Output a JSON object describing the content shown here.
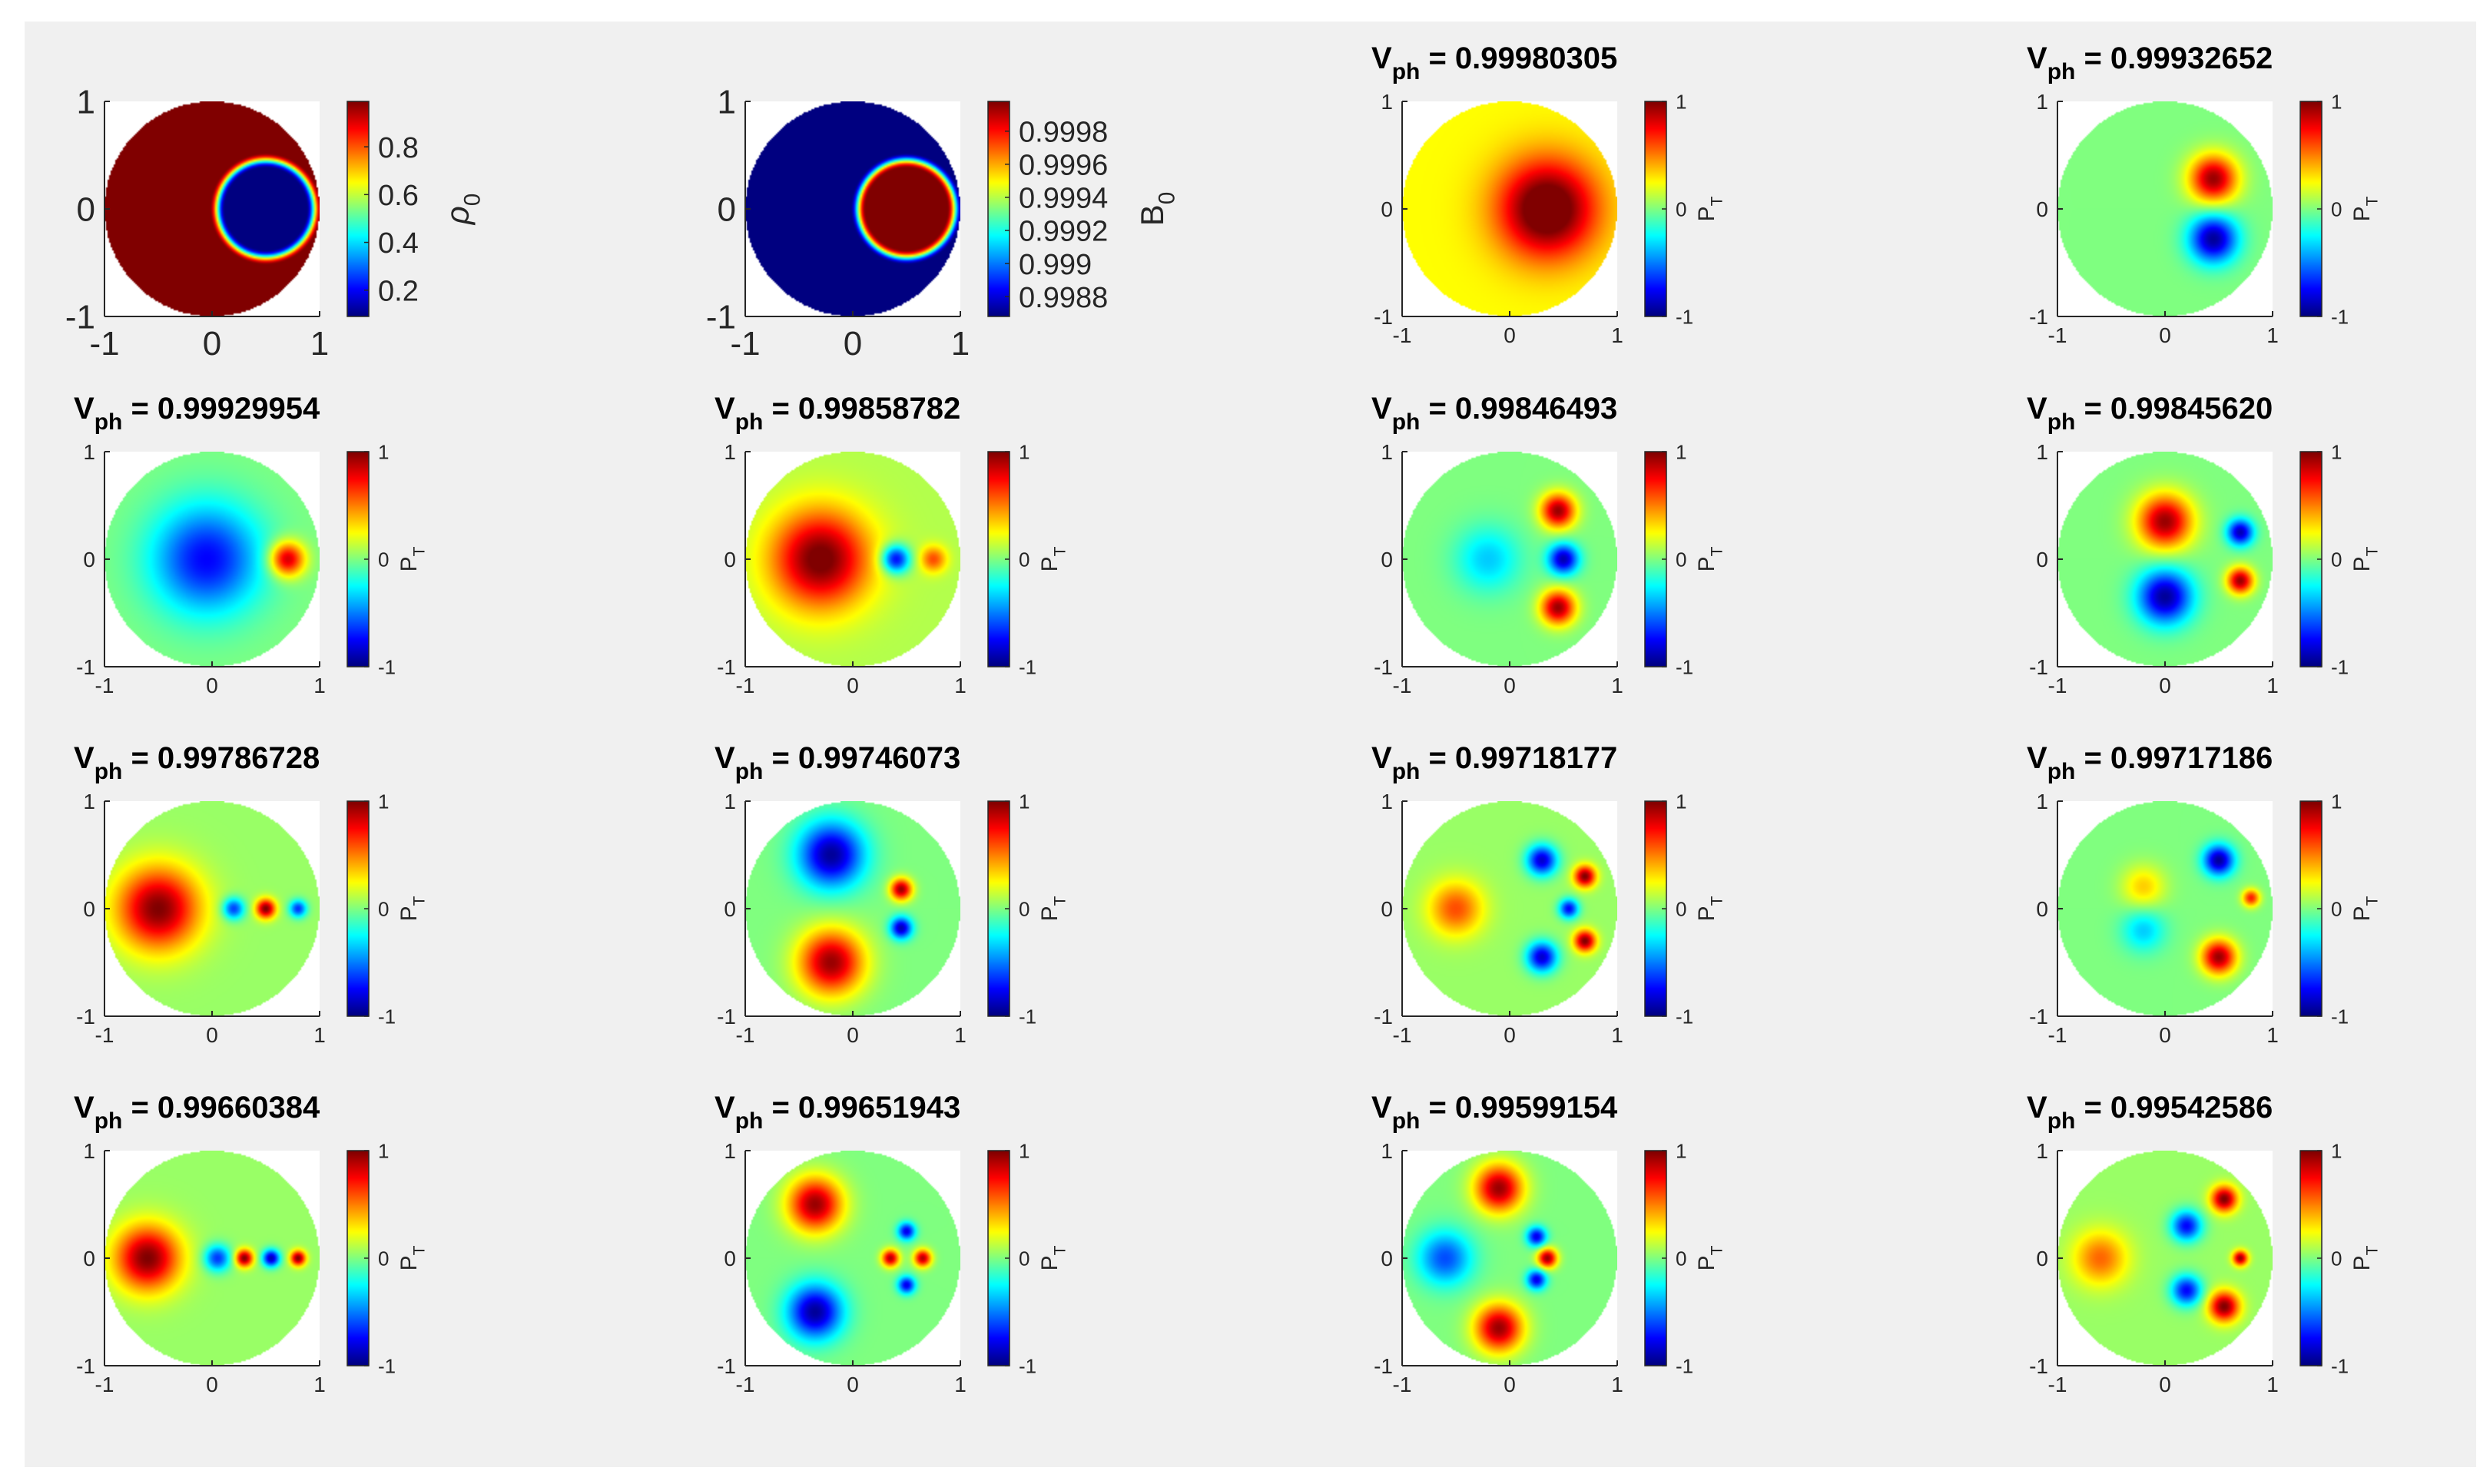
{
  "figure": {
    "background": "#f0f0f0",
    "colormap": "jet",
    "grid": "4x4"
  },
  "chart_data": [
    {
      "type": "heatmap",
      "title": "",
      "colorbar_label": "ρ",
      "colorbar_label_subscript": "0",
      "colorbar_ticks": [
        "0.8",
        "0.6",
        "0.4",
        "0.2"
      ],
      "colorbar_tick_values": [
        0.8,
        0.6,
        0.4,
        0.2
      ],
      "clim": [
        0.09,
        0.99
      ],
      "xlim": [
        -1,
        1
      ],
      "ylim": [
        -1,
        1
      ],
      "xticks": [
        "-1",
        "0",
        "1"
      ],
      "yticks": [
        "1",
        "0",
        "-1"
      ],
      "field": {
        "kind": "density",
        "hole_center": [
          0.5,
          0
        ],
        "hole_radius": 0.45,
        "outside": 0.99,
        "inside": 0.09
      }
    },
    {
      "type": "heatmap",
      "title": "",
      "colorbar_label": "B",
      "colorbar_label_subscript": "0",
      "colorbar_ticks": [
        "0.9998",
        "0.9996",
        "0.9994",
        "0.9992",
        "0.999",
        "0.9988"
      ],
      "colorbar_tick_values": [
        0.9998,
        0.9996,
        0.9994,
        0.9992,
        0.999,
        0.9988
      ],
      "clim": [
        0.99868,
        0.99998
      ],
      "xlim": [
        -1,
        1
      ],
      "ylim": [
        -1,
        1
      ],
      "xticks": [
        "-1",
        "0",
        "1"
      ],
      "yticks": [
        "1",
        "0",
        "-1"
      ],
      "field": {
        "kind": "field_strength",
        "hole_center": [
          0.5,
          0
        ],
        "hole_radius": 0.45,
        "outside": 0.99868,
        "inside": 0.99998
      }
    },
    {
      "type": "heatmap",
      "title_prefix": "V",
      "title_sub": "ph",
      "title_value": " = 0.99980305",
      "colorbar_label": "P",
      "colorbar_label_subscript": "T",
      "colorbar_ticks": [
        "1",
        "0",
        "-1"
      ],
      "clim": [
        -1,
        1
      ],
      "xlim": [
        -1,
        1
      ],
      "ylim": [
        -1,
        1
      ],
      "xticks": [
        "-1",
        "0",
        "1"
      ],
      "yticks": [
        "1",
        "0",
        "-1"
      ],
      "field": {
        "kind": "mode",
        "base": 0.25,
        "blobs": [
          [
            0.35,
            0.0,
            0.95,
            0.45
          ]
        ]
      }
    },
    {
      "type": "heatmap",
      "title_prefix": "V",
      "title_sub": "ph",
      "title_value": " = 0.99932652",
      "colorbar_label": "P",
      "colorbar_label_subscript": "T",
      "colorbar_ticks": [
        "1",
        "0",
        "-1"
      ],
      "clim": [
        -1,
        1
      ],
      "xlim": [
        -1,
        1
      ],
      "ylim": [
        -1,
        1
      ],
      "xticks": [
        "-1",
        "0",
        "1"
      ],
      "yticks": [
        "1",
        "0",
        "-1"
      ],
      "field": {
        "kind": "mode",
        "base": 0.0,
        "blobs": [
          [
            0.45,
            0.28,
            0.95,
            0.22
          ],
          [
            0.45,
            -0.28,
            -0.95,
            0.22
          ]
        ]
      }
    },
    {
      "type": "heatmap",
      "title_prefix": "V",
      "title_sub": "ph",
      "title_value": " = 0.99929954",
      "colorbar_label": "P",
      "colorbar_label_subscript": "T",
      "colorbar_ticks": [
        "1",
        "0",
        "-1"
      ],
      "clim": [
        -1,
        1
      ],
      "xlim": [
        -1,
        1
      ],
      "ylim": [
        -1,
        1
      ],
      "xticks": [
        "-1",
        "0",
        "1"
      ],
      "yticks": [
        "1",
        "0",
        "-1"
      ],
      "field": {
        "kind": "mode",
        "base": 0.0,
        "blobs": [
          [
            -0.05,
            0.0,
            -0.75,
            0.5
          ],
          [
            0.7,
            0.0,
            0.9,
            0.16
          ]
        ]
      }
    },
    {
      "type": "heatmap",
      "title_prefix": "V",
      "title_sub": "ph",
      "title_value": " = 0.99858782",
      "colorbar_label": "P",
      "colorbar_label_subscript": "T",
      "colorbar_ticks": [
        "1",
        "0",
        "-1"
      ],
      "clim": [
        -1,
        1
      ],
      "xlim": [
        -1,
        1
      ],
      "ylim": [
        -1,
        1
      ],
      "xticks": [
        "-1",
        "0",
        "1"
      ],
      "yticks": [
        "1",
        "0",
        "-1"
      ],
      "field": {
        "kind": "mode",
        "base": 0.1,
        "blobs": [
          [
            -0.3,
            0.0,
            0.95,
            0.45
          ],
          [
            0.4,
            0.0,
            -0.9,
            0.13
          ],
          [
            0.75,
            0.0,
            0.5,
            0.12
          ]
        ]
      }
    },
    {
      "type": "heatmap",
      "title_prefix": "V",
      "title_sub": "ph",
      "title_value": " = 0.99846493",
      "colorbar_label": "P",
      "colorbar_label_subscript": "T",
      "colorbar_ticks": [
        "1",
        "0",
        "-1"
      ],
      "clim": [
        -1,
        1
      ],
      "xlim": [
        -1,
        1
      ],
      "ylim": [
        -1,
        1
      ],
      "xticks": [
        "-1",
        "0",
        "1"
      ],
      "yticks": [
        "1",
        "0",
        "-1"
      ],
      "field": {
        "kind": "mode",
        "base": 0.0,
        "blobs": [
          [
            0.45,
            0.45,
            0.95,
            0.16
          ],
          [
            0.45,
            -0.45,
            0.95,
            0.16
          ],
          [
            0.5,
            0.0,
            -0.9,
            0.14
          ],
          [
            -0.2,
            0.0,
            -0.35,
            0.3
          ]
        ]
      }
    },
    {
      "type": "heatmap",
      "title_prefix": "V",
      "title_sub": "ph",
      "title_value": " = 0.99845620",
      "colorbar_label": "P",
      "colorbar_label_subscript": "T",
      "colorbar_ticks": [
        "1",
        "0",
        "-1"
      ],
      "clim": [
        -1,
        1
      ],
      "xlim": [
        -1,
        1
      ],
      "ylim": [
        -1,
        1
      ],
      "xticks": [
        "-1",
        "0",
        "1"
      ],
      "yticks": [
        "1",
        "0",
        "-1"
      ],
      "field": {
        "kind": "mode",
        "base": 0.0,
        "blobs": [
          [
            0.0,
            0.35,
            0.95,
            0.25
          ],
          [
            0.0,
            -0.35,
            -0.95,
            0.25
          ],
          [
            0.7,
            0.25,
            -0.9,
            0.12
          ],
          [
            0.7,
            -0.2,
            0.95,
            0.12
          ]
        ]
      }
    },
    {
      "type": "heatmap",
      "title_prefix": "V",
      "title_sub": "ph",
      "title_value": " = 0.99786728",
      "colorbar_label": "P",
      "colorbar_label_subscript": "T",
      "colorbar_ticks": [
        "1",
        "0",
        "-1"
      ],
      "clim": [
        -1,
        1
      ],
      "xlim": [
        -1,
        1
      ],
      "ylim": [
        -1,
        1
      ],
      "xticks": [
        "-1",
        "0",
        "1"
      ],
      "yticks": [
        "1",
        "0",
        "-1"
      ],
      "field": {
        "kind": "mode",
        "base": 0.05,
        "blobs": [
          [
            -0.5,
            0.0,
            0.95,
            0.38
          ],
          [
            0.2,
            0.0,
            -0.7,
            0.1
          ],
          [
            0.5,
            0.0,
            0.95,
            0.09
          ],
          [
            0.8,
            0.0,
            -0.7,
            0.08
          ]
        ]
      }
    },
    {
      "type": "heatmap",
      "title_prefix": "V",
      "title_sub": "ph",
      "title_value": " = 0.99746073",
      "colorbar_label": "P",
      "colorbar_label_subscript": "T",
      "colorbar_ticks": [
        "1",
        "0",
        "-1"
      ],
      "clim": [
        -1,
        1
      ],
      "xlim": [
        -1,
        1
      ],
      "ylim": [
        -1,
        1
      ],
      "xticks": [
        "-1",
        "0",
        "1"
      ],
      "yticks": [
        "1",
        "0",
        "-1"
      ],
      "field": {
        "kind": "mode",
        "base": 0.0,
        "blobs": [
          [
            -0.2,
            0.5,
            -0.95,
            0.3
          ],
          [
            -0.2,
            -0.5,
            0.95,
            0.3
          ],
          [
            0.45,
            0.18,
            0.95,
            0.1
          ],
          [
            0.45,
            -0.18,
            -0.9,
            0.1
          ]
        ]
      }
    },
    {
      "type": "heatmap",
      "title_prefix": "V",
      "title_sub": "ph",
      "title_value": " = 0.99718177",
      "colorbar_label": "P",
      "colorbar_label_subscript": "T",
      "colorbar_ticks": [
        "1",
        "0",
        "-1"
      ],
      "clim": [
        -1,
        1
      ],
      "xlim": [
        -1,
        1
      ],
      "ylim": [
        -1,
        1
      ],
      "xticks": [
        "-1",
        "0",
        "1"
      ],
      "yticks": [
        "1",
        "0",
        "-1"
      ],
      "field": {
        "kind": "mode",
        "base": 0.05,
        "blobs": [
          [
            -0.5,
            0.0,
            0.55,
            0.25
          ],
          [
            0.3,
            0.45,
            -0.9,
            0.14
          ],
          [
            0.3,
            -0.45,
            -0.9,
            0.14
          ],
          [
            0.7,
            0.3,
            0.95,
            0.1
          ],
          [
            0.7,
            -0.3,
            0.95,
            0.1
          ],
          [
            0.55,
            0.0,
            -0.8,
            0.09
          ]
        ]
      }
    },
    {
      "type": "heatmap",
      "title_prefix": "V",
      "title_sub": "ph",
      "title_value": " = 0.99717186",
      "colorbar_label": "P",
      "colorbar_label_subscript": "T",
      "colorbar_ticks": [
        "1",
        "0",
        "-1"
      ],
      "clim": [
        -1,
        1
      ],
      "xlim": [
        -1,
        1
      ],
      "ylim": [
        -1,
        1
      ],
      "xticks": [
        "-1",
        "0",
        "1"
      ],
      "yticks": [
        "1",
        "0",
        "-1"
      ],
      "field": {
        "kind": "mode",
        "base": 0.0,
        "blobs": [
          [
            0.5,
            0.45,
            -0.95,
            0.14
          ],
          [
            0.5,
            -0.45,
            0.95,
            0.16
          ],
          [
            -0.2,
            0.2,
            0.35,
            0.2
          ],
          [
            -0.2,
            -0.2,
            -0.35,
            0.2
          ],
          [
            0.8,
            0.1,
            0.7,
            0.08
          ]
        ]
      }
    },
    {
      "type": "heatmap",
      "title_prefix": "V",
      "title_sub": "ph",
      "title_value": " = 0.99660384",
      "colorbar_label": "P",
      "colorbar_label_subscript": "T",
      "colorbar_ticks": [
        "1",
        "0",
        "-1"
      ],
      "clim": [
        -1,
        1
      ],
      "xlim": [
        -1,
        1
      ],
      "ylim": [
        -1,
        1
      ],
      "xticks": [
        "-1",
        "0",
        "1"
      ],
      "yticks": [
        "1",
        "0",
        "-1"
      ],
      "field": {
        "kind": "mode",
        "base": 0.05,
        "blobs": [
          [
            -0.6,
            0.0,
            0.95,
            0.3
          ],
          [
            0.05,
            0.0,
            -0.7,
            0.12
          ],
          [
            0.3,
            0.0,
            0.95,
            0.08
          ],
          [
            0.55,
            0.0,
            -0.95,
            0.08
          ],
          [
            0.8,
            0.0,
            0.95,
            0.07
          ]
        ]
      }
    },
    {
      "type": "heatmap",
      "title_prefix": "V",
      "title_sub": "ph",
      "title_value": " = 0.99651943",
      "colorbar_label": "P",
      "colorbar_label_subscript": "T",
      "colorbar_ticks": [
        "1",
        "0",
        "-1"
      ],
      "clim": [
        -1,
        1
      ],
      "xlim": [
        -1,
        1
      ],
      "ylim": [
        -1,
        1
      ],
      "xticks": [
        "-1",
        "0",
        "1"
      ],
      "yticks": [
        "1",
        "0",
        "-1"
      ],
      "field": {
        "kind": "mode",
        "base": 0.0,
        "blobs": [
          [
            -0.35,
            0.5,
            0.95,
            0.25
          ],
          [
            -0.35,
            -0.5,
            -0.95,
            0.25
          ],
          [
            0.5,
            0.25,
            -0.8,
            0.08
          ],
          [
            0.5,
            -0.25,
            -0.8,
            0.08
          ],
          [
            0.35,
            0.0,
            0.9,
            0.08
          ],
          [
            0.65,
            0.0,
            0.9,
            0.08
          ]
        ]
      }
    },
    {
      "type": "heatmap",
      "title_prefix": "V",
      "title_sub": "ph",
      "title_value": " = 0.99599154",
      "colorbar_label": "P",
      "colorbar_label_subscript": "T",
      "colorbar_ticks": [
        "1",
        "0",
        "-1"
      ],
      "clim": [
        -1,
        1
      ],
      "xlim": [
        -1,
        1
      ],
      "ylim": [
        -1,
        1
      ],
      "xticks": [
        "-1",
        "0",
        "1"
      ],
      "yticks": [
        "1",
        "0",
        "-1"
      ],
      "field": {
        "kind": "mode",
        "base": 0.0,
        "blobs": [
          [
            -0.1,
            0.65,
            0.95,
            0.22
          ],
          [
            -0.1,
            -0.65,
            0.95,
            0.22
          ],
          [
            -0.6,
            0.0,
            -0.6,
            0.25
          ],
          [
            0.35,
            0.0,
            0.95,
            0.09
          ],
          [
            0.25,
            0.2,
            -0.8,
            0.09
          ],
          [
            0.25,
            -0.2,
            -0.8,
            0.09
          ]
        ]
      }
    },
    {
      "type": "heatmap",
      "title_prefix": "V",
      "title_sub": "ph",
      "title_value": " = 0.99542586",
      "colorbar_label": "P",
      "colorbar_label_subscript": "T",
      "colorbar_ticks": [
        "1",
        "0",
        "-1"
      ],
      "clim": [
        -1,
        1
      ],
      "xlim": [
        -1,
        1
      ],
      "ylim": [
        -1,
        1
      ],
      "xticks": [
        "-1",
        "0",
        "1"
      ],
      "yticks": [
        "1",
        "0",
        "-1"
      ],
      "field": {
        "kind": "mode",
        "base": 0.05,
        "blobs": [
          [
            -0.6,
            0.0,
            0.5,
            0.25
          ],
          [
            0.55,
            0.55,
            0.95,
            0.12
          ],
          [
            0.55,
            -0.45,
            0.95,
            0.14
          ],
          [
            0.2,
            0.3,
            -0.8,
            0.14
          ],
          [
            0.2,
            -0.3,
            -0.8,
            0.14
          ],
          [
            0.7,
            0.0,
            0.9,
            0.07
          ]
        ]
      }
    }
  ]
}
